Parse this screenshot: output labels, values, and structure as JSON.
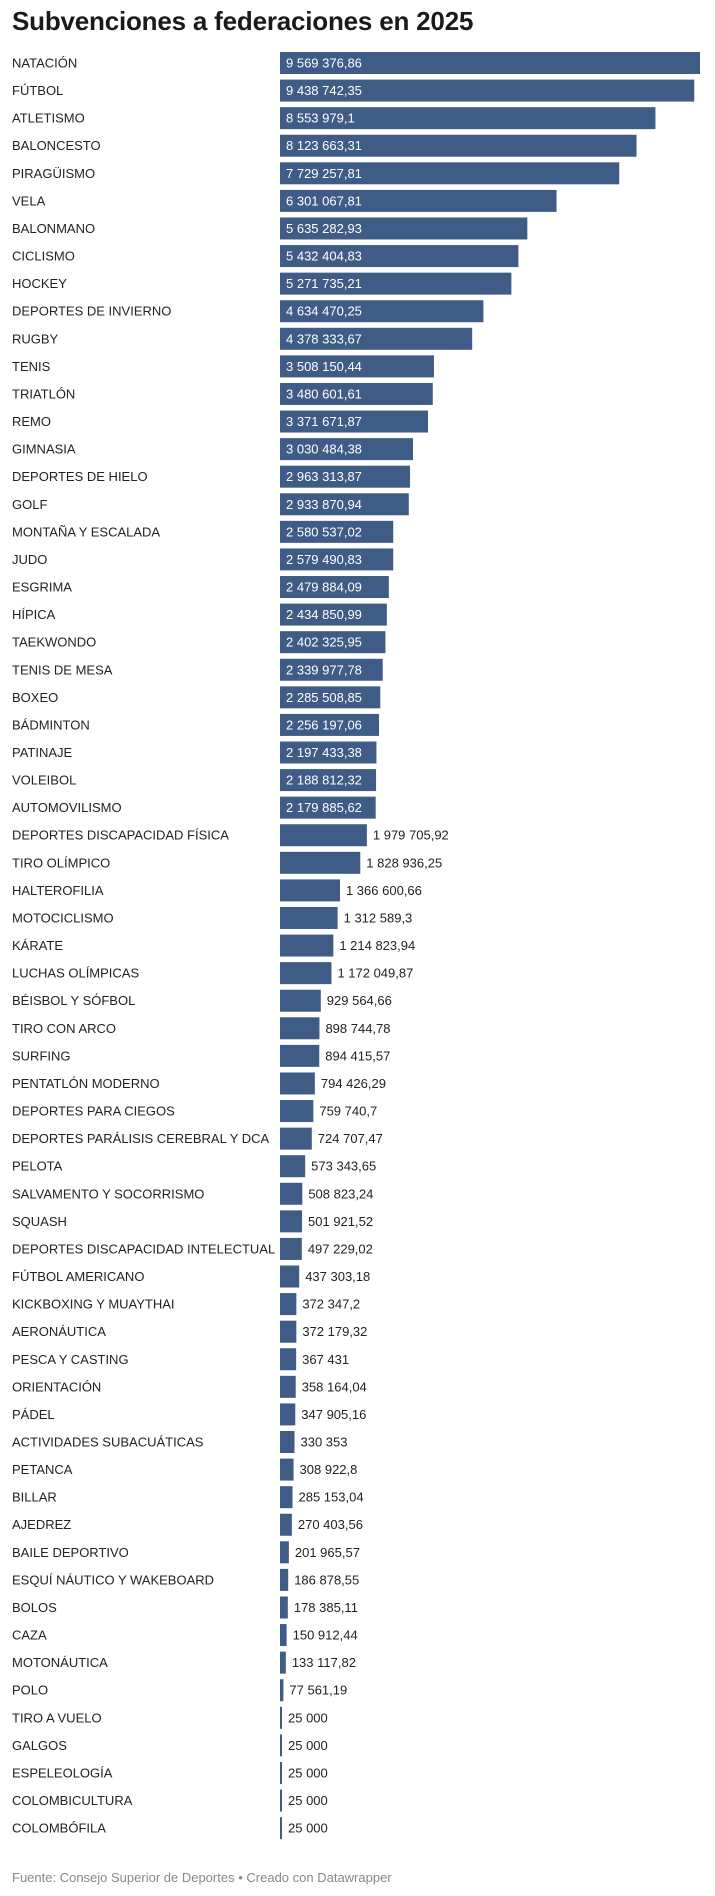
{
  "footer": {
    "source": "Fuente: Consejo Superior de Deportes",
    "separator": "•",
    "credit": "Creado con Datawrapper"
  },
  "colors": {
    "bar": "#3f5c86",
    "label_inside": "#ffffff",
    "label_outside": "#222222",
    "category": "#222222"
  },
  "chart_data": {
    "type": "bar",
    "orientation": "horizontal",
    "title": "Subvenciones a federaciones en 2025",
    "xlabel": "",
    "ylabel": "",
    "xlim": [
      0,
      9569376.86
    ],
    "grid": false,
    "legend": "none",
    "categories": [
      "NATACIÓN",
      "FÚTBOL",
      "ATLETISMO",
      "BALONCESTO",
      "PIRAGÜISMO",
      "VELA",
      "BALONMANO",
      "CICLISMO",
      "HOCKEY",
      "DEPORTES DE INVIERNO",
      "RUGBY",
      "TENIS",
      "TRIATLÓN",
      "REMO",
      "GIMNASIA",
      "DEPORTES DE HIELO",
      "GOLF",
      "MONTAÑA Y ESCALADA",
      "JUDO",
      "ESGRIMA",
      "HÍPICA",
      "TAEKWONDO",
      "TENIS DE MESA",
      "BOXEO",
      "BÁDMINTON",
      "PATINAJE",
      "VOLEIBOL",
      "AUTOMOVILISMO",
      "DEPORTES DISCAPACIDAD FÍSICA",
      "TIRO OLÍMPICO",
      "HALTEROFILIA",
      "MOTOCICLISMO",
      "KÁRATE",
      "LUCHAS OLÍMPICAS",
      "BÉISBOL Y SÓFBOL",
      "TIRO CON ARCO",
      "SURFING",
      "PENTATLÓN MODERNO",
      "DEPORTES PARA CIEGOS",
      "DEPORTES PARÁLISIS CEREBRAL Y DCA",
      "PELOTA",
      "SALVAMENTO Y SOCORRISMO",
      "SQUASH",
      "DEPORTES DISCAPACIDAD INTELECTUAL",
      "FÚTBOL AMERICANO",
      "KICKBOXING Y MUAYTHAI",
      "AERONÁUTICA",
      "PESCA Y CASTING",
      "ORIENTACIÓN",
      "PÁDEL",
      "ACTIVIDADES SUBACUÁTICAS",
      "PETANCA",
      "BILLAR",
      "AJEDREZ",
      "BAILE DEPORTIVO",
      "ESQUÍ NÁUTICO Y WAKEBOARD",
      "BOLOS",
      "CAZA",
      "MOTONÁUTICA",
      "POLO",
      "TIRO A VUELO",
      "GALGOS",
      "ESPELEOLOGÍA",
      "COLOMBICULTURA",
      "COLOMBÓFILA"
    ],
    "values": [
      9569376.86,
      9438742.35,
      8553979.1,
      8123663.31,
      7729257.81,
      6301067.81,
      5635282.93,
      5432404.83,
      5271735.21,
      4634470.25,
      4378333.67,
      3508150.44,
      3480601.61,
      3371671.87,
      3030484.38,
      2963313.87,
      2933870.94,
      2580537.02,
      2579490.83,
      2479884.09,
      2434850.99,
      2402325.95,
      2339977.78,
      2285508.85,
      2256197.06,
      2197433.38,
      2188812.32,
      2179885.62,
      1979705.92,
      1828936.25,
      1366600.66,
      1312589.3,
      1214823.94,
      1172049.87,
      929564.66,
      898744.78,
      894415.57,
      794426.29,
      759740.7,
      724707.47,
      573343.65,
      508823.24,
      501921.52,
      497229.02,
      437303.18,
      372347.2,
      372179.32,
      367431,
      358164.04,
      347905.16,
      330353,
      308922.8,
      285153.04,
      270403.56,
      201965.57,
      186878.55,
      178385.11,
      150912.44,
      133117.82,
      77561.19,
      25000,
      25000,
      25000,
      25000,
      25000
    ],
    "value_labels": [
      "9 569 376,86",
      "9 438 742,35",
      "8 553 979,1",
      "8 123 663,31",
      "7 729 257,81",
      "6 301 067,81",
      "5 635 282,93",
      "5 432 404,83",
      "5 271 735,21",
      "4 634 470,25",
      "4 378 333,67",
      "3 508 150,44",
      "3 480 601,61",
      "3 371 671,87",
      "3 030 484,38",
      "2 963 313,87",
      "2 933 870,94",
      "2 580 537,02",
      "2 579 490,83",
      "2 479 884,09",
      "2 434 850,99",
      "2 402 325,95",
      "2 339 977,78",
      "2 285 508,85",
      "2 256 197,06",
      "2 197 433,38",
      "2 188 812,32",
      "2 179 885,62",
      "1 979 705,92",
      "1 828 936,25",
      "1 366 600,66",
      "1 312 589,3",
      "1 214 823,94",
      "1 172 049,87",
      "929 564,66",
      "898 744,78",
      "894 415,57",
      "794 426,29",
      "759 740,7",
      "724 707,47",
      "573 343,65",
      "508 823,24",
      "501 921,52",
      "497 229,02",
      "437 303,18",
      "372 347,2",
      "372 179,32",
      "367 431",
      "358 164,04",
      "347 905,16",
      "330 353",
      "308 922,8",
      "285 153,04",
      "270 403,56",
      "201 965,57",
      "186 878,55",
      "178 385,11",
      "150 912,44",
      "133 117,82",
      "77 561,19",
      "25 000",
      "25 000",
      "25 000",
      "25 000",
      "25 000"
    ],
    "labels_inside_count": 28
  }
}
